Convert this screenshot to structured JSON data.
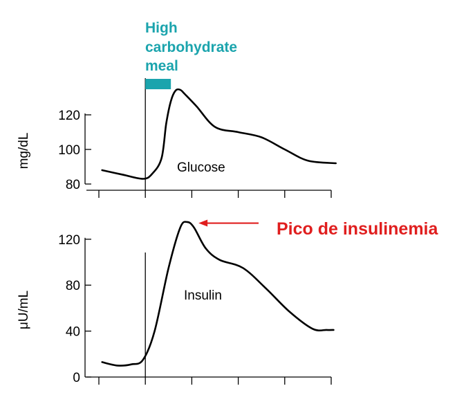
{
  "colors": {
    "meal": "#1ba4ad",
    "callout": "#e01e1e",
    "line": "#000000"
  },
  "chart_data": [
    {
      "type": "line",
      "name": "glucose-panel",
      "ylabel": "mg/dL",
      "ylim": [
        80,
        140
      ],
      "xlim": [
        -1,
        4
      ],
      "yticks": [
        80,
        100,
        120
      ],
      "xticks": [
        -1,
        0,
        1,
        2,
        3,
        4
      ],
      "grid": false,
      "meal_time": 0,
      "meal_duration": 0.55,
      "meal_label_lines": [
        "High",
        "carbohydrate",
        "meal"
      ],
      "series": [
        {
          "label": "Glucose",
          "x": [
            -0.93,
            -0.5,
            -0.05,
            0.15,
            0.35,
            0.45,
            0.55,
            0.65,
            0.75,
            0.85,
            1.1,
            1.5,
            2.0,
            2.5,
            3.0,
            3.5,
            4.1
          ],
          "y": [
            88,
            85.5,
            83,
            86,
            95,
            115,
            128,
            134,
            134.5,
            132,
            125,
            113,
            110,
            107,
            100,
            93.5,
            92
          ]
        }
      ]
    },
    {
      "type": "line",
      "name": "insulin-panel",
      "ylabel": "μU/mL",
      "ylim": [
        0,
        140
      ],
      "xlim": [
        -1,
        4
      ],
      "yticks": [
        0,
        40,
        80,
        120
      ],
      "xticks": [
        -1,
        0,
        1,
        2,
        3,
        4
      ],
      "grid": false,
      "meal_time": 0,
      "series": [
        {
          "label": "Insulin",
          "x": [
            -0.93,
            -0.6,
            -0.3,
            -0.05,
            0.2,
            0.5,
            0.75,
            0.9,
            1.05,
            1.3,
            1.6,
            2.1,
            2.6,
            3.1,
            3.6,
            3.9,
            4.05
          ],
          "y": [
            13,
            10,
            11,
            15,
            40,
            95,
            130,
            135,
            130,
            112,
            102,
            95,
            77,
            57,
            42,
            41,
            41
          ]
        }
      ],
      "annotation": {
        "text": "Pico de insulinemia",
        "target_x": 1.1,
        "target_y": 134
      }
    }
  ]
}
